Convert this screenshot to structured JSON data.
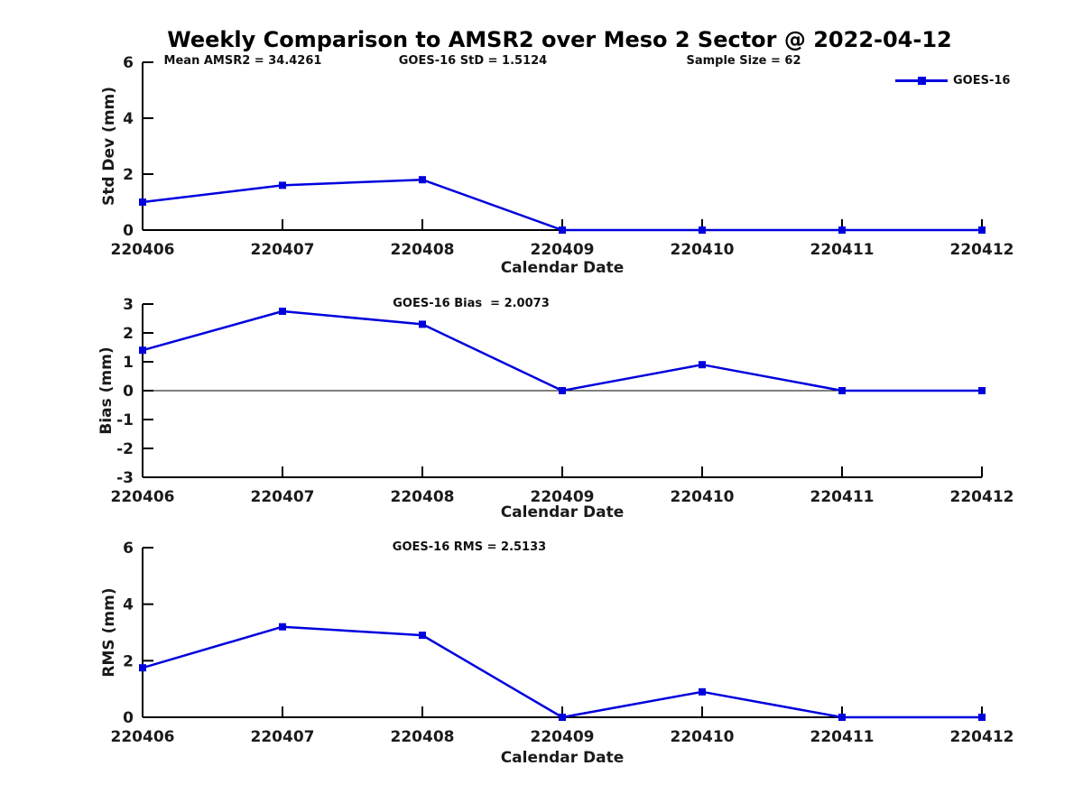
{
  "title": "Weekly Comparison to AMSR2 over Meso 2 Sector @ 2022-04-12",
  "header_annotations": {
    "mean_amsr2": "Mean AMSR2 = 34.4261",
    "goes16_std": "GOES-16 StD = 1.5124",
    "sample_size": "Sample Size = 62"
  },
  "legend": {
    "label": "GOES-16",
    "position": "top-right",
    "marker": "filled-square"
  },
  "x_axis_label": "Calendar Date",
  "colors": {
    "line": "#0000dd",
    "axis": "#000000",
    "text": "#1a1a1a"
  },
  "chart_data": [
    {
      "type": "line",
      "ylabel": "Std Dev (mm)",
      "ylim": [
        0,
        6
      ],
      "yticks": [
        0,
        2,
        4,
        6
      ],
      "categories": [
        "220406",
        "220407",
        "220408",
        "220409",
        "220410",
        "220411",
        "220412"
      ],
      "series": [
        {
          "name": "GOES-16",
          "values": [
            1.0,
            1.6,
            1.8,
            0,
            0,
            0,
            0
          ]
        }
      ],
      "annotation": "",
      "zero_line": false,
      "grid": false
    },
    {
      "type": "line",
      "ylabel": "Bias (mm)",
      "ylim": [
        -3,
        3
      ],
      "yticks": [
        -3,
        -2,
        -1,
        0,
        1,
        2,
        3
      ],
      "categories": [
        "220406",
        "220407",
        "220408",
        "220409",
        "220410",
        "220411",
        "220412"
      ],
      "series": [
        {
          "name": "GOES-16",
          "values": [
            1.4,
            2.75,
            2.3,
            0,
            0.9,
            0,
            0
          ]
        }
      ],
      "annotation": "GOES-16 Bias  = 2.0073",
      "zero_line": true,
      "grid": false
    },
    {
      "type": "line",
      "ylabel": "RMS (mm)",
      "ylim": [
        0,
        6
      ],
      "yticks": [
        0,
        2,
        4,
        6
      ],
      "categories": [
        "220406",
        "220407",
        "220408",
        "220409",
        "220410",
        "220411",
        "220412"
      ],
      "series": [
        {
          "name": "GOES-16",
          "values": [
            1.75,
            3.2,
            2.9,
            0,
            0.9,
            0,
            0
          ]
        }
      ],
      "annotation": "GOES-16 RMS = 2.5133",
      "zero_line": false,
      "grid": false
    }
  ]
}
